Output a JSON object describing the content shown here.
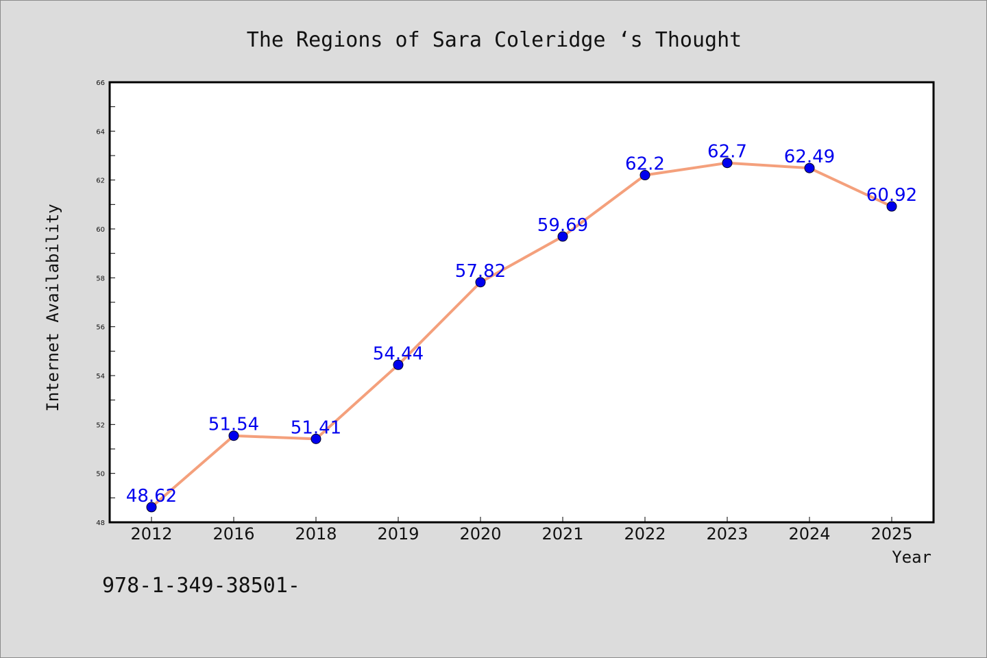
{
  "chart_data": {
    "type": "line",
    "title": "The Regions of Sara Coleridge ‘s Thought",
    "xlabel": "Year",
    "ylabel": "Internet Availability",
    "categories": [
      "2012",
      "2016",
      "2018",
      "2019",
      "2020",
      "2021",
      "2022",
      "2023",
      "2024",
      "2025"
    ],
    "series": [
      {
        "values": [
          48.62,
          51.54,
          51.41,
          54.44,
          57.82,
          59.69,
          62.2,
          62.7,
          62.49,
          60.92
        ],
        "data_labels": [
          "48.62",
          "51.54",
          "51.41",
          "54.44",
          "57.82",
          "59.69",
          "62.2",
          "62.7",
          "62.49",
          "60.92"
        ]
      }
    ],
    "ylim": [
      48,
      66
    ],
    "y_ticks": [
      48,
      50,
      52,
      54,
      56,
      58,
      60,
      62,
      64,
      66
    ],
    "grid": false,
    "legend": "none",
    "colors": {
      "line": "#f4a07c",
      "marker": "#0000ee",
      "data_label": "#0000ee",
      "background": "#dcdcdc",
      "plot_background": "#ffffff"
    },
    "footer": "978-1-349-38501-"
  }
}
